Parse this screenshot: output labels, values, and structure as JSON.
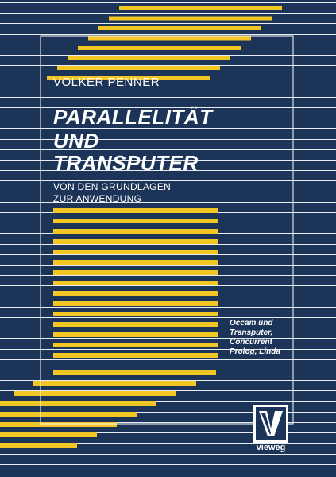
{
  "cover": {
    "author": "VOLKER PENNER",
    "title_lines": [
      "PARALLELITÄT",
      "UND",
      "TRANSPUTER"
    ],
    "subtitle_lines": [
      "VON DEN GRUNDLAGEN",
      "ZUR ANWENDUNG"
    ],
    "blurb_lines": [
      "Occam und",
      "Transputer,",
      "Concurrent",
      "Prolog, Linda"
    ],
    "publisher": "vieweg",
    "colors": {
      "background": "#1c3457",
      "stripe": "#f2c624",
      "line": "#e8edf3",
      "text": "#ffffff"
    }
  }
}
